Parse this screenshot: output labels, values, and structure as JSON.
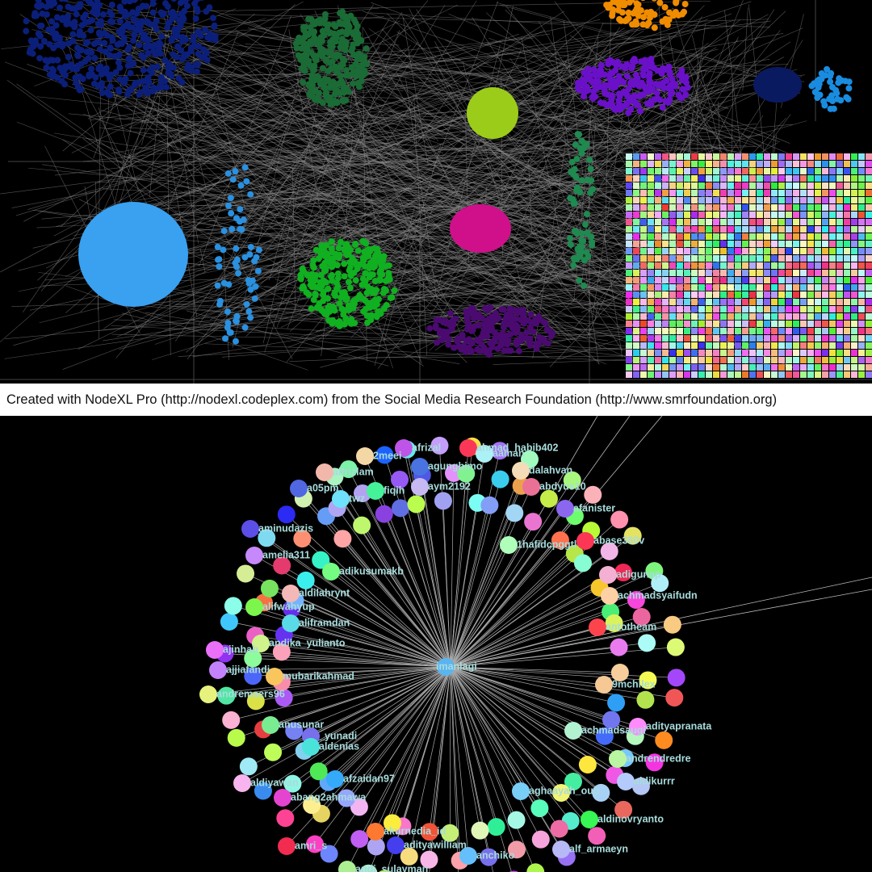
{
  "caption": "Created with NodeXL Pro (http://nodexl.codeplex.com) from the Social Media Research Foundation (http://www.smrfoundation.org)",
  "graph": {
    "center": "imanlagi",
    "nodes": [
      "2meei",
      "afrizal",
      "ahmad_habib402",
      "aaman",
      "agungbimo",
      "dalahvan",
      "abdyus10",
      "alfrizlam",
      "a05pm",
      "fiqih",
      "aym2192",
      "twz",
      "afanister",
      "aminudazis",
      "amelia311",
      "adikusumakb",
      "abase380v",
      "1hafidcpggtl",
      "adigunap",
      "achmadsyaifudn",
      "aldilahrynt",
      "alifwahyup",
      "aliframdan",
      "andika_yulianto",
      "ajinhab",
      "ajjiafandi",
      "mubarikahmad",
      "andremaers96",
      "antotheam",
      "9mchilex",
      "anusunar",
      "_yunadi",
      "aldenias",
      "achmadsaugi",
      "adityapranata",
      "andrendredre",
      "aldikurrr",
      "aldiyawan",
      "afzaidan97",
      "abang2ahmawa",
      "aghaayah_ouo",
      "aldinovryanto",
      "akurnedia_id",
      "amri_s",
      "adityawilliam",
      "alf_armaeyn",
      "anchiko",
      "andi_sulayman"
    ]
  }
}
